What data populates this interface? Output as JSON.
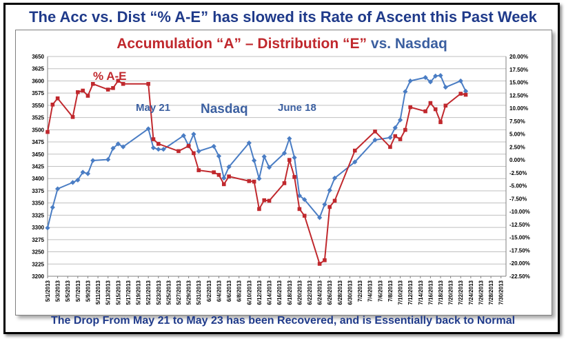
{
  "headline": "The Acc vs. Dist “% A-E” has slowed its Rate of Ascent this Past Week",
  "footer": "The Drop From May 21 to May 23 has been Recovered, and is Essentially back to Normal",
  "chart_data": {
    "type": "line",
    "title_part1": "Accumulation “A” – Distribution “E”",
    "title_part2": " vs. Nasdaq",
    "title_colors": {
      "part1": "#c0282d",
      "part2": "#3b5fa0"
    },
    "annotations": [
      {
        "text": "% A-E",
        "color": "#c0282d"
      },
      {
        "text": "Nasdaq",
        "color": "#3b5fa0"
      },
      {
        "text": "May 21",
        "color": "#3b5fa0"
      },
      {
        "text": "June 18",
        "color": "#3b5fa0"
      }
    ],
    "y_left": {
      "min": 3200,
      "max": 3650,
      "step": 25
    },
    "y_right": {
      "min": -22.5,
      "max": 20.0,
      "step": 2.5
    },
    "x_range": [
      "2013-05-01",
      "2013-07-31"
    ],
    "x_tick_labels": [
      "5/1/2013",
      "5/3/2013",
      "5/5/2013",
      "5/7/2013",
      "5/9/2013",
      "5/11/2013",
      "5/13/2013",
      "5/15/2013",
      "5/17/2013",
      "5/19/2013",
      "5/21/2013",
      "5/23/2013",
      "5/25/2013",
      "5/27/2013",
      "5/29/2013",
      "5/31/2013",
      "6/2/2013",
      "6/4/2013",
      "6/6/2013",
      "6/8/2013",
      "6/10/2013",
      "6/12/2013",
      "6/14/2013",
      "6/16/2013",
      "6/18/2013",
      "6/20/2013",
      "6/22/2013",
      "6/24/2013",
      "6/26/2013",
      "6/28/2013",
      "6/30/2013",
      "7/2/2013",
      "7/4/2013",
      "7/6/2013",
      "7/8/2013",
      "7/10/2013",
      "7/12/2013",
      "7/14/2013",
      "7/16/2013",
      "7/18/2013",
      "7/20/2013",
      "7/22/2013",
      "7/24/2013",
      "7/26/2013",
      "7/28/2013",
      "7/30/2013"
    ],
    "series": [
      {
        "name": "Nasdaq",
        "axis": "left",
        "color": "#4a7dc4",
        "marker": "diamond",
        "points": [
          [
            "2013-05-01",
            3299
          ],
          [
            "2013-05-02",
            3341
          ],
          [
            "2013-05-03",
            3379
          ],
          [
            "2013-05-06",
            3392
          ],
          [
            "2013-05-07",
            3397
          ],
          [
            "2013-05-08",
            3413
          ],
          [
            "2013-05-09",
            3410
          ],
          [
            "2013-05-10",
            3437
          ],
          [
            "2013-05-13",
            3439
          ],
          [
            "2013-05-14",
            3462
          ],
          [
            "2013-05-15",
            3471
          ],
          [
            "2013-05-16",
            3465
          ],
          [
            "2013-05-21",
            3502
          ],
          [
            "2013-05-22",
            3463
          ],
          [
            "2013-05-23",
            3460
          ],
          [
            "2013-05-24",
            3460
          ],
          [
            "2013-05-28",
            3488
          ],
          [
            "2013-05-29",
            3467
          ],
          [
            "2013-05-30",
            3491
          ],
          [
            "2013-05-31",
            3456
          ],
          [
            "2013-06-03",
            3466
          ],
          [
            "2013-06-04",
            3446
          ],
          [
            "2013-06-05",
            3401
          ],
          [
            "2013-06-06",
            3424
          ],
          [
            "2013-06-10",
            3473
          ],
          [
            "2013-06-11",
            3437
          ],
          [
            "2013-06-12",
            3400
          ],
          [
            "2013-06-13",
            3445
          ],
          [
            "2013-06-14",
            3423
          ],
          [
            "2013-06-17",
            3452
          ],
          [
            "2013-06-18",
            3482
          ],
          [
            "2013-06-19",
            3443
          ],
          [
            "2013-06-20",
            3365
          ],
          [
            "2013-06-21",
            3357
          ],
          [
            "2013-06-24",
            3320
          ],
          [
            "2013-06-25",
            3347
          ],
          [
            "2013-06-26",
            3376
          ],
          [
            "2013-06-27",
            3401
          ],
          [
            "2013-07-01",
            3434
          ],
          [
            "2013-07-05",
            3479
          ],
          [
            "2013-07-08",
            3484
          ],
          [
            "2013-07-09",
            3504
          ],
          [
            "2013-07-10",
            3520
          ],
          [
            "2013-07-11",
            3578
          ],
          [
            "2013-07-12",
            3600
          ],
          [
            "2013-07-15",
            3607
          ],
          [
            "2013-07-16",
            3598
          ],
          [
            "2013-07-17",
            3610
          ],
          [
            "2013-07-18",
            3611
          ],
          [
            "2013-07-19",
            3587
          ],
          [
            "2013-07-22",
            3600
          ],
          [
            "2013-07-23",
            3579
          ]
        ]
      },
      {
        "name": "% A-E",
        "axis": "right",
        "color": "#c0282d",
        "marker": "square",
        "points": [
          [
            "2013-05-01",
            5.4
          ],
          [
            "2013-05-02",
            10.7
          ],
          [
            "2013-05-03",
            11.9
          ],
          [
            "2013-05-06",
            8.3
          ],
          [
            "2013-05-07",
            13.1
          ],
          [
            "2013-05-08",
            13.4
          ],
          [
            "2013-05-09",
            12.4
          ],
          [
            "2013-05-10",
            14.7
          ],
          [
            "2013-05-13",
            13.6
          ],
          [
            "2013-05-14",
            13.9
          ],
          [
            "2013-05-15",
            15.3
          ],
          [
            "2013-05-16",
            14.7
          ],
          [
            "2013-05-21",
            14.7
          ],
          [
            "2013-05-22",
            4.0
          ],
          [
            "2013-05-23",
            3.1
          ],
          [
            "2013-05-27",
            1.7
          ],
          [
            "2013-05-29",
            2.7
          ],
          [
            "2013-05-30",
            1.3
          ],
          [
            "2013-05-31",
            -2.0
          ],
          [
            "2013-06-03",
            -2.4
          ],
          [
            "2013-06-04",
            -2.9
          ],
          [
            "2013-06-05",
            -4.7
          ],
          [
            "2013-06-06",
            -3.2
          ],
          [
            "2013-06-10",
            -4.1
          ],
          [
            "2013-06-11",
            -4.2
          ],
          [
            "2013-06-12",
            -9.5
          ],
          [
            "2013-06-13",
            -7.8
          ],
          [
            "2013-06-14",
            -7.9
          ],
          [
            "2013-06-17",
            -4.5
          ],
          [
            "2013-06-18",
            0.0
          ],
          [
            "2013-06-19",
            -3.3
          ],
          [
            "2013-06-20",
            -9.5
          ],
          [
            "2013-06-21",
            -10.8
          ],
          [
            "2013-06-24",
            -20.1
          ],
          [
            "2013-06-25",
            -19.4
          ],
          [
            "2013-06-26",
            -9.1
          ],
          [
            "2013-06-27",
            -7.9
          ],
          [
            "2013-07-01",
            1.8
          ],
          [
            "2013-07-05",
            5.5
          ],
          [
            "2013-07-08",
            2.5
          ],
          [
            "2013-07-09",
            4.6
          ],
          [
            "2013-07-10",
            4.0
          ],
          [
            "2013-07-11",
            5.8
          ],
          [
            "2013-07-12",
            10.2
          ],
          [
            "2013-07-15",
            9.4
          ],
          [
            "2013-07-16",
            11.0
          ],
          [
            "2013-07-17",
            9.8
          ],
          [
            "2013-07-18",
            7.3
          ],
          [
            "2013-07-19",
            10.5
          ],
          [
            "2013-07-22",
            12.8
          ],
          [
            "2013-07-23",
            12.6
          ]
        ]
      }
    ]
  }
}
